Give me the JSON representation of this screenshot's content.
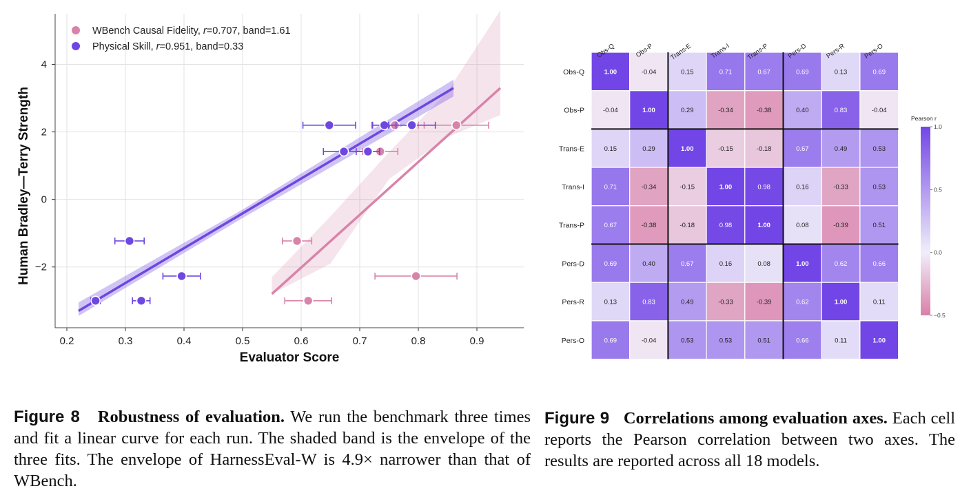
{
  "chart_data": [
    {
      "type": "scatter",
      "xlabel": "Evaluator Score",
      "ylabel": "Human Bradley—Terry Strength",
      "xlim": [
        0.18,
        0.98
      ],
      "ylim": [
        -3.8,
        5.5
      ],
      "xticks": [
        "0.2",
        "0.3",
        "0.4",
        "0.5",
        "0.6",
        "0.7",
        "0.8",
        "0.9"
      ],
      "xtick_values": [
        0.2,
        0.3,
        0.4,
        0.5,
        0.6,
        0.7,
        0.8,
        0.9
      ],
      "yticks": [
        "−2",
        "0",
        "2",
        "4"
      ],
      "ytick_values": [
        -2,
        0,
        2,
        4
      ],
      "grid": true,
      "legend_position": "top-left",
      "series": [
        {
          "name_prefix": "WBench Causal Fidelity, ",
          "r_symbol": "r",
          "name_suffix": "=0.707, band=1.61",
          "color": "#d884aa",
          "points": [
            {
              "x": 0.612,
              "y": -3.0,
              "err": 0.04
            },
            {
              "x": 0.796,
              "y": -2.27,
              "err": 0.07
            },
            {
              "x": 0.593,
              "y": -1.23,
              "err": 0.025
            },
            {
              "x": 0.735,
              "y": 1.42,
              "err": 0.03
            },
            {
              "x": 0.76,
              "y": 2.2,
              "err": 0.04
            },
            {
              "x": 0.865,
              "y": 2.2,
              "err": 0.055
            }
          ],
          "fit": {
            "x": [
              0.55,
              0.94
            ],
            "y": [
              -2.8,
              3.3
            ]
          },
          "band": [
            [
              0.55,
              -2.3,
              -2.8
            ],
            [
              0.65,
              -0.5,
              -1.9
            ],
            [
              0.75,
              1.4,
              0.6
            ],
            [
              0.85,
              3.2,
              1.85
            ],
            [
              0.94,
              5.6,
              2.5
            ]
          ]
        },
        {
          "name_prefix": "Physical Skill, ",
          "r_symbol": "r",
          "name_suffix": "=0.951, band=0.33",
          "color": "#6e47e0",
          "points": [
            {
              "x": 0.249,
              "y": -3.0,
              "err": 0.008
            },
            {
              "x": 0.327,
              "y": -3.0,
              "err": 0.015
            },
            {
              "x": 0.396,
              "y": -2.27,
              "err": 0.032
            },
            {
              "x": 0.307,
              "y": -1.23,
              "err": 0.025
            },
            {
              "x": 0.673,
              "y": 1.42,
              "err": 0.035
            },
            {
              "x": 0.714,
              "y": 1.42,
              "err": 0.02
            },
            {
              "x": 0.648,
              "y": 2.2,
              "err": 0.045
            },
            {
              "x": 0.742,
              "y": 2.2,
              "err": 0.02
            },
            {
              "x": 0.789,
              "y": 2.2,
              "err": 0.04
            }
          ],
          "fit": {
            "x": [
              0.22,
              0.86
            ],
            "y": [
              -3.3,
              3.3
            ]
          },
          "band": [
            [
              0.22,
              -3.05,
              -3.45
            ],
            [
              0.5,
              -0.3,
              -0.55
            ],
            [
              0.86,
              3.55,
              3.05
            ]
          ]
        }
      ]
    },
    {
      "type": "heatmap",
      "labels": [
        "Obs-Q",
        "Obs-P",
        "Trans-E",
        "Trans-I",
        "Trans-P",
        "Pers-D",
        "Pers-R",
        "Pers-O"
      ],
      "values": [
        [
          1.0,
          -0.04,
          0.15,
          0.71,
          0.67,
          0.69,
          0.13,
          0.69
        ],
        [
          -0.04,
          1.0,
          0.29,
          -0.34,
          -0.38,
          0.4,
          0.83,
          -0.04
        ],
        [
          0.15,
          0.29,
          1.0,
          -0.15,
          -0.18,
          0.67,
          0.49,
          0.53
        ],
        [
          0.71,
          -0.34,
          -0.15,
          1.0,
          0.98,
          0.16,
          -0.33,
          0.53
        ],
        [
          0.67,
          -0.38,
          -0.18,
          0.98,
          1.0,
          0.08,
          -0.39,
          0.51
        ],
        [
          0.69,
          0.4,
          0.67,
          0.16,
          0.08,
          1.0,
          0.62,
          0.66
        ],
        [
          0.13,
          0.83,
          0.49,
          -0.33,
          -0.39,
          0.62,
          1.0,
          0.11
        ],
        [
          0.69,
          -0.04,
          0.53,
          0.53,
          0.51,
          0.66,
          0.11,
          1.0
        ]
      ],
      "group_boundaries": [
        2,
        5
      ],
      "colorbar": {
        "title": "Pearson r",
        "range": [
          -0.5,
          1.0
        ],
        "ticks": [
          "1.0",
          "0.5",
          "0.0",
          "−0.5"
        ],
        "tick_values": [
          1.0,
          0.5,
          0.0,
          -0.5
        ],
        "colors": {
          "high": "#7246e6",
          "mid": "#f1eefa",
          "low": "#d97fa8"
        }
      }
    }
  ],
  "captions": {
    "fig8": {
      "number": "Figure 8",
      "title": "Robustness of evaluation.",
      "text": " We run the benchmark three times and fit a linear curve for each run. The shaded band is the envelope of the three fits. The envelope of HarnessEval-W is 4.9× narrower than that of WBench."
    },
    "fig9": {
      "number": "Figure 9",
      "title": "Correlations among evaluation axes.",
      "text": " Each cell reports the Pearson correlation between two axes. The results are reported across all 18 models."
    }
  }
}
